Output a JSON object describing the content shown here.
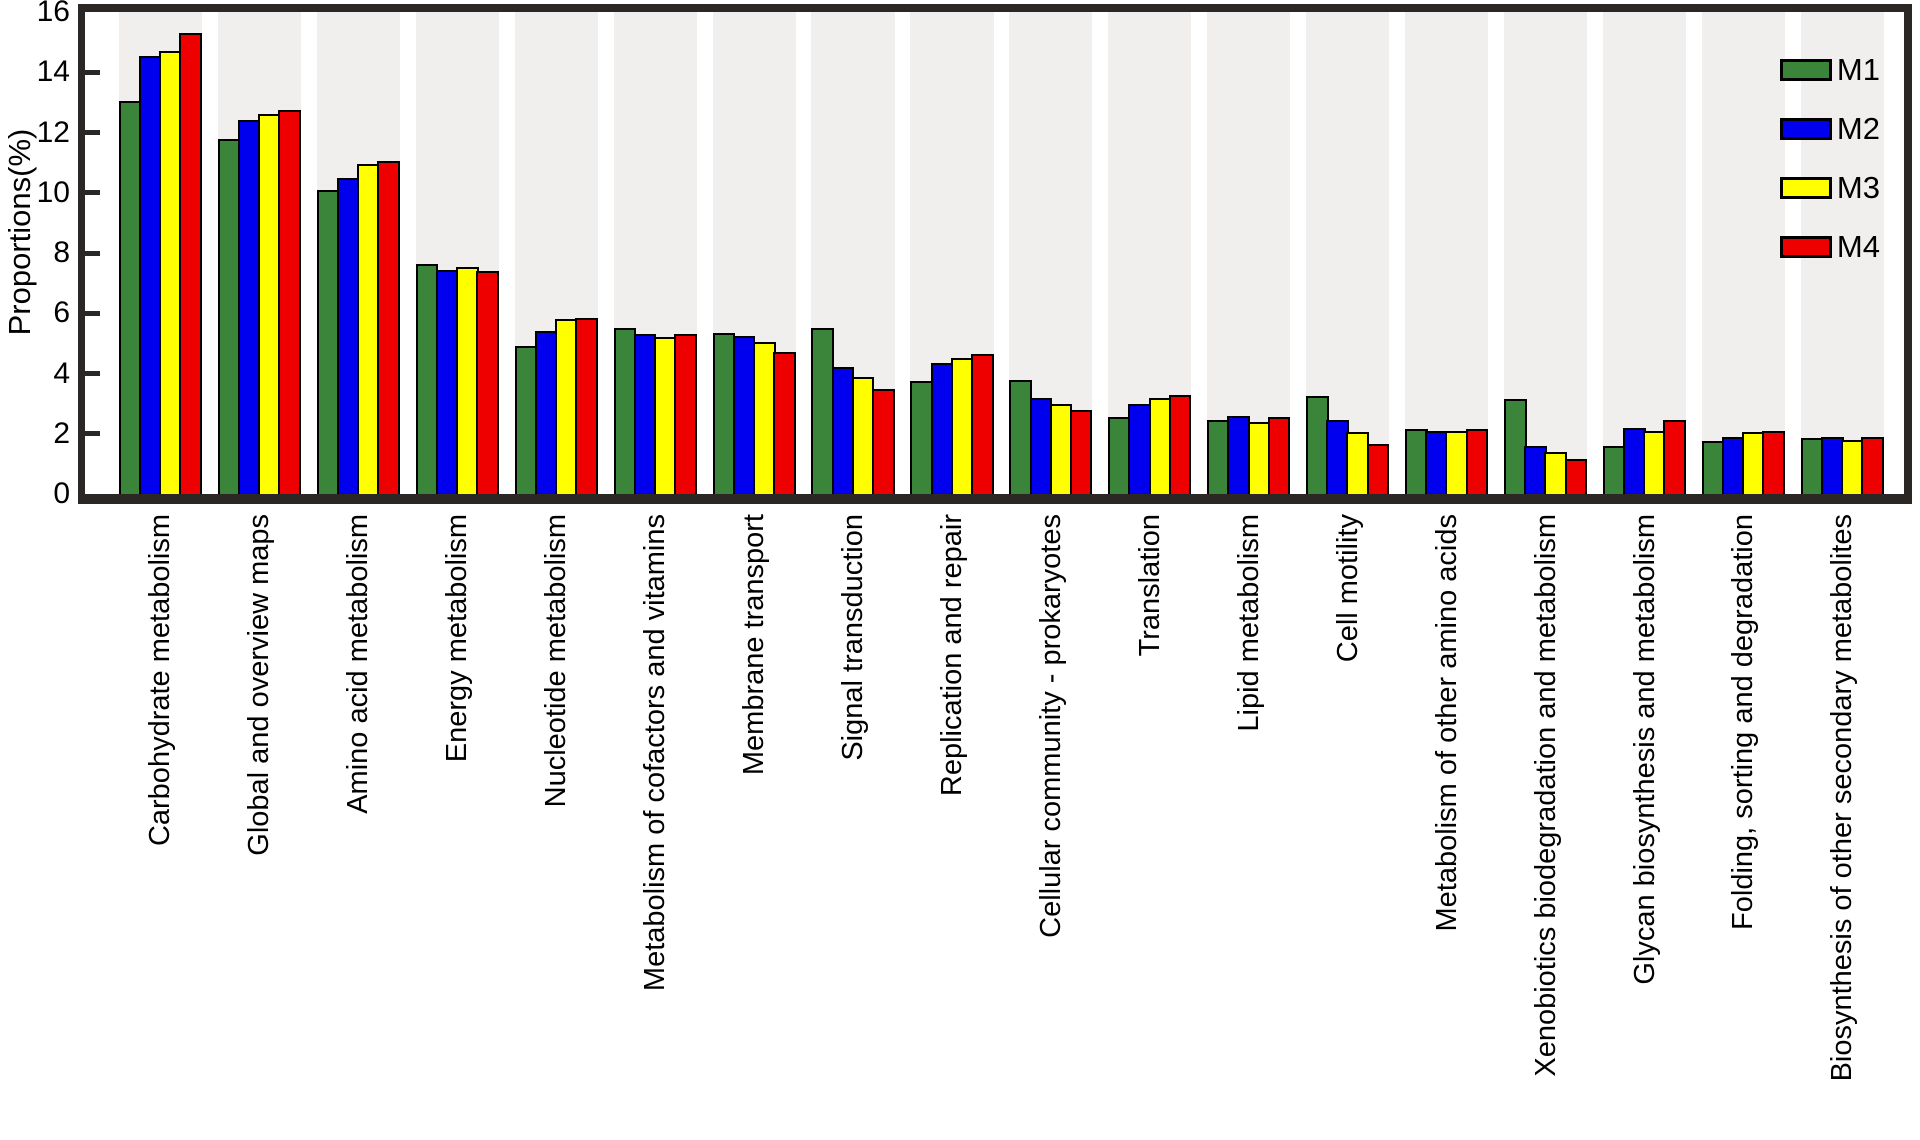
{
  "figure": {
    "background": "#ffffff"
  },
  "chart_data": {
    "type": "bar",
    "title": "",
    "xlabel": "",
    "ylabel": "Proportions(%)",
    "ylim": [
      0,
      16
    ],
    "yticks": [
      0,
      2,
      4,
      6,
      8,
      10,
      12,
      14,
      16
    ],
    "grid": false,
    "legend_position": "top-right",
    "band_color": "#f0efed",
    "frame_color": "#2b2724",
    "bar_outline_color": "#000000",
    "categories": [
      "Carbohydrate metabolism",
      "Global and overview maps",
      "Amino acid metabolism",
      "Energy metabolism",
      "Nucleotide metabolism",
      "Metabolism of cofactors and vitamins",
      "Membrane transport",
      "Signal transduction",
      "Replication and repair",
      "Cellular community - prokaryotes",
      "Translation",
      "Lipid metabolism",
      "Cell motility",
      "Metabolism of other amino acids",
      "Xenobiotics biodegradation and metabolism",
      "Glycan biosynthesis and metabolism",
      "Folding, sorting and degradation",
      "Biosynthesis of other secondary metabolites"
    ],
    "series": [
      {
        "name": "M1",
        "color": "#3a853a",
        "values": [
          13.05,
          11.8,
          10.1,
          7.65,
          4.9,
          5.5,
          5.35,
          5.5,
          3.75,
          3.8,
          2.55,
          2.45,
          3.25,
          2.15,
          3.15,
          1.6,
          1.75,
          1.85
        ]
      },
      {
        "name": "M2",
        "color": "#0000ee",
        "values": [
          14.55,
          12.4,
          10.5,
          7.45,
          5.4,
          5.3,
          5.25,
          4.2,
          4.35,
          3.2,
          3.0,
          2.6,
          2.45,
          2.1,
          1.6,
          2.2,
          1.9,
          1.9
        ]
      },
      {
        "name": "M3",
        "color": "#ffff00",
        "values": [
          14.7,
          12.6,
          10.95,
          7.55,
          5.8,
          5.2,
          5.05,
          3.9,
          4.5,
          3.0,
          3.2,
          2.4,
          2.05,
          2.1,
          1.4,
          2.1,
          2.05,
          1.8
        ]
      },
      {
        "name": "M4",
        "color": "#ee0000",
        "values": [
          15.3,
          12.75,
          11.05,
          7.4,
          5.85,
          5.3,
          4.7,
          3.5,
          4.65,
          2.8,
          3.3,
          2.55,
          1.65,
          2.15,
          1.15,
          2.45,
          2.1,
          1.9
        ]
      }
    ]
  }
}
